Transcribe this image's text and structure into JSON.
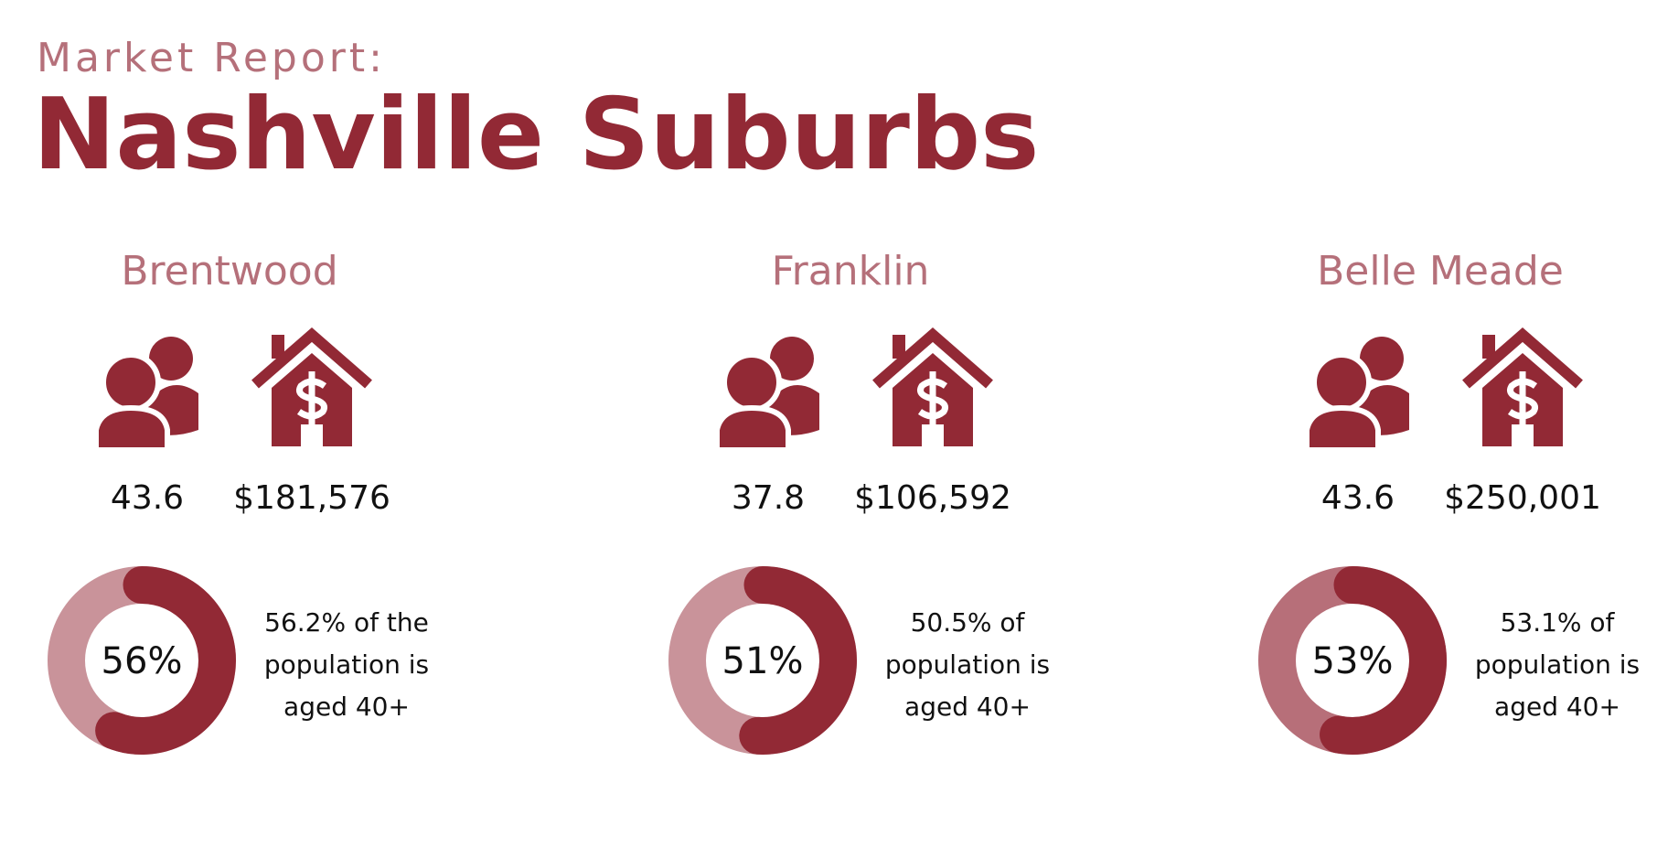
{
  "header": {
    "subtitle": "Market Report:",
    "title": "Nashville Suburbs"
  },
  "suburbs": [
    {
      "name": "Brentwood",
      "median_age": "43.6",
      "home_value": "$181,576",
      "percent": 56,
      "percent_label": "56%",
      "caption": [
        "56.2% of the",
        "population is",
        "aged 40+"
      ]
    },
    {
      "name": "Franklin",
      "median_age": "37.8",
      "home_value": "$106,592",
      "percent": 51,
      "percent_label": "51%",
      "caption": [
        "50.5% of",
        "population is",
        "aged 40+"
      ]
    },
    {
      "name": "Belle Meade",
      "median_age": "43.6",
      "home_value": "$250,001",
      "percent": 53,
      "percent_label": "53%",
      "caption": [
        "53.1% of",
        "population is",
        "aged 40+"
      ]
    }
  ]
}
